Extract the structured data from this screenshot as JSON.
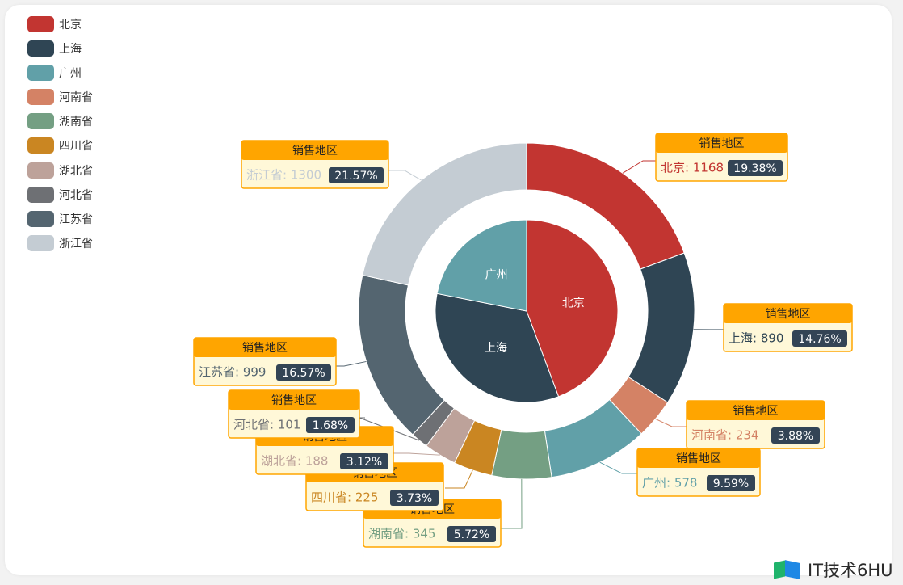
{
  "chart_data": {
    "type": "pie",
    "legend_position": "top-left",
    "inner_pie": [
      {
        "name": "北京",
        "value": 1168,
        "color": "#c23531"
      },
      {
        "name": "上海",
        "value": 890,
        "color": "#2f4554"
      },
      {
        "name": "广州",
        "value": 578,
        "color": "#61a0a8"
      }
    ],
    "outer_ring": [
      {
        "name": "北京",
        "value": 1168,
        "percent": "19.38%",
        "color": "#c23531"
      },
      {
        "name": "上海",
        "value": 890,
        "percent": "14.76%",
        "color": "#2f4554"
      },
      {
        "name": "河南省",
        "value": 234,
        "percent": "3.88%",
        "color": "#d48265"
      },
      {
        "name": "广州",
        "value": 578,
        "percent": "9.59%",
        "color": "#61a0a8"
      },
      {
        "name": "湖南省",
        "value": 345,
        "percent": "5.72%",
        "color": "#749f83"
      },
      {
        "name": "四川省",
        "value": 225,
        "percent": "3.73%",
        "color": "#ca8622"
      },
      {
        "name": "湖北省",
        "value": 188,
        "percent": "3.12%",
        "color": "#bda29a"
      },
      {
        "name": "河北省",
        "value": 101,
        "percent": "1.68%",
        "color": "#6e7074"
      },
      {
        "name": "江苏省",
        "value": 999,
        "percent": "16.57%",
        "color": "#546570"
      },
      {
        "name": "浙江省",
        "value": 1300,
        "percent": "21.57%",
        "color": "#c4ccd3"
      }
    ],
    "legend": [
      {
        "name": "北京",
        "color": "#c23531"
      },
      {
        "name": "上海",
        "color": "#2f4554"
      },
      {
        "name": "广州",
        "color": "#61a0a8"
      },
      {
        "name": "河南省",
        "color": "#d48265"
      },
      {
        "name": "湖南省",
        "color": "#749f83"
      },
      {
        "name": "四川省",
        "color": "#ca8622"
      },
      {
        "name": "湖北省",
        "color": "#bda29a"
      },
      {
        "name": "河北省",
        "color": "#6e7074"
      },
      {
        "name": "江苏省",
        "color": "#546570"
      },
      {
        "name": "浙江省",
        "color": "#c4ccd3"
      }
    ],
    "label_title": "销售地区",
    "label_title_color": "#ffa500",
    "label_body_color": "#fff8d8",
    "pct_badge_color": "#334455"
  },
  "watermark": {
    "text": "IT技术6HU"
  }
}
